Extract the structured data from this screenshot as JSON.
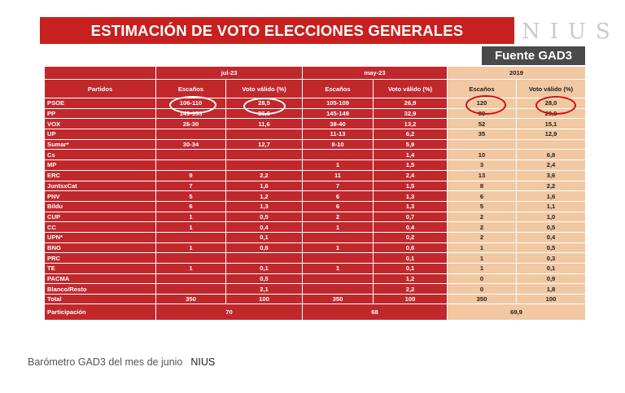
{
  "title": "ESTIMACIÓN DE VOTO ELECCIONES GENERALES",
  "logo_text": "NIUS",
  "source_badge": "Fuente GAD3",
  "caption": {
    "text": "Barómetro GAD3 del mes de junio",
    "brand": "NIUS"
  },
  "colors": {
    "title_red": "#c8201e",
    "table_red": "#c0282c",
    "peach": "#f1c8a2",
    "badge_grey": "#4a4a4a"
  },
  "chart_data": {
    "type": "table",
    "title": "ESTIMACIÓN DE VOTO ELECCIONES GENERALES",
    "groups": [
      "jul-23",
      "may-23",
      "2019"
    ],
    "columns": [
      "Partidos",
      "Escaños",
      "Voto válido (%)",
      "Escaños",
      "Voto válido (%)",
      "Escaños",
      "Voto válido (%)"
    ],
    "rows": [
      [
        "PSOE",
        "106-110",
        "28,5",
        "105-109",
        "26,9",
        "120",
        "28,0"
      ],
      [
        "PP",
        "149-153",
        "36,6",
        "145-149",
        "32,9",
        "89",
        "20,8"
      ],
      [
        "VOX",
        "26-30",
        "11,6",
        "38-40",
        "13,2",
        "52",
        "15,1"
      ],
      [
        "UP",
        "",
        "",
        "11-13",
        "6,2",
        "35",
        "12,9"
      ],
      [
        "Sumar*",
        "30-34",
        "12,7",
        "8-10",
        "5,9",
        "",
        ""
      ],
      [
        "Cs",
        "",
        "",
        "",
        "1,4",
        "10",
        "6,8"
      ],
      [
        "MP",
        "",
        "",
        "1",
        "1,5",
        "3",
        "2,4"
      ],
      [
        "ERC",
        "9",
        "2,2",
        "11",
        "2,4",
        "13",
        "3,6"
      ],
      [
        "JuntsxCat",
        "7",
        "1,6",
        "7",
        "1,5",
        "8",
        "2,2"
      ],
      [
        "PNV",
        "5",
        "1,2",
        "6",
        "1,3",
        "6",
        "1,6"
      ],
      [
        "Bildu",
        "6",
        "1,3",
        "6",
        "1,3",
        "5",
        "1,1"
      ],
      [
        "CUP",
        "1",
        "0,5",
        "2",
        "0,7",
        "2",
        "1,0"
      ],
      [
        "CC",
        "1",
        "0,4",
        "1",
        "0,4",
        "2",
        "0,5"
      ],
      [
        "UPN*",
        "",
        "0,1",
        "",
        "0,2",
        "2",
        "0,4"
      ],
      [
        "BNG",
        "1",
        "0,6",
        "1",
        "0,6",
        "1",
        "0,5"
      ],
      [
        "PRC",
        "",
        "",
        "",
        "0,1",
        "1",
        "0,3"
      ],
      [
        "TE",
        "1",
        "0,1",
        "1",
        "0,1",
        "1",
        "0,1"
      ],
      [
        "PACMA",
        "",
        "0,5",
        "",
        "1,2",
        "0",
        "0,9"
      ],
      [
        "Blanco/Resto",
        "",
        "2,1",
        "",
        "2,2",
        "0",
        "1,8"
      ],
      [
        "Total",
        "350",
        "100",
        "350",
        "100",
        "350",
        "100"
      ]
    ],
    "participation": {
      "label": "Participación",
      "values": [
        "70",
        "68",
        "69,9"
      ]
    }
  }
}
